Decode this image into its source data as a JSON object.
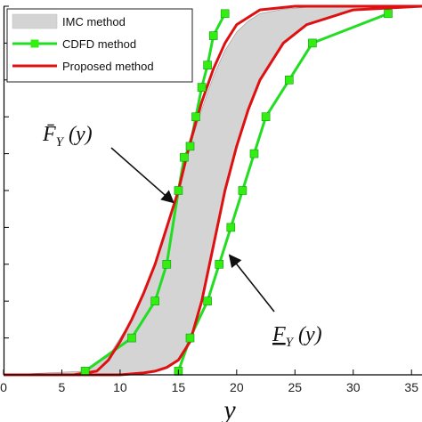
{
  "chart_data": {
    "type": "line",
    "xlabel": "y",
    "xlim": [
      0,
      35.9
    ],
    "ylim": [
      0,
      1.0
    ],
    "x_ticks": [
      "0",
      "5",
      "10",
      "15",
      "20",
      "25",
      "30",
      "35"
    ],
    "colors": {
      "imc_fill": "#d4d4d4",
      "cdfd": "#22dd22",
      "cdfd_marker": "#33ee11",
      "proposed": "#dd1111",
      "axis": "#000000"
    },
    "legend_position": "top-left",
    "legend": [
      {
        "name": "IMC method",
        "style": "patch"
      },
      {
        "name": "CDFD method",
        "style": "line-marker"
      },
      {
        "name": "Proposed method",
        "style": "line"
      }
    ],
    "series": [
      {
        "name": "IMC method",
        "kind": "band",
        "upper": {
          "x": [
            0,
            7,
            9,
            10,
            11,
            12,
            13,
            14,
            15,
            16,
            17,
            18,
            19,
            20,
            21,
            22,
            24,
            26,
            28,
            30,
            36
          ],
          "y": [
            0,
            0.01,
            0.05,
            0.1,
            0.15,
            0.22,
            0.3,
            0.4,
            0.5,
            0.62,
            0.72,
            0.81,
            0.88,
            0.93,
            0.96,
            0.98,
            0.992,
            0.997,
            1.0,
            1.0,
            1.0
          ]
        },
        "lower": {
          "x": [
            0,
            10,
            12,
            13,
            14,
            15,
            16,
            17,
            18,
            19,
            20,
            21,
            22,
            24,
            26,
            30,
            36
          ],
          "y": [
            0,
            0,
            0.005,
            0.01,
            0.02,
            0.04,
            0.09,
            0.2,
            0.35,
            0.5,
            0.62,
            0.72,
            0.8,
            0.9,
            0.95,
            0.99,
            1.0
          ]
        }
      },
      {
        "name": "CDFD method",
        "kind": "two-curves",
        "upper": {
          "x": [
            7,
            11,
            13,
            14,
            15,
            15.5,
            16,
            16.5,
            17,
            17.5,
            18,
            19
          ],
          "y": [
            0.01,
            0.1,
            0.2,
            0.3,
            0.5,
            0.59,
            0.62,
            0.7,
            0.78,
            0.84,
            0.92,
            0.98
          ]
        },
        "lower": {
          "x": [
            15,
            16,
            17.5,
            18.5,
            19.5,
            20.5,
            21.5,
            22.5,
            24.5,
            26.5,
            33
          ],
          "y": [
            0.01,
            0.1,
            0.2,
            0.3,
            0.4,
            0.5,
            0.6,
            0.7,
            0.8,
            0.9,
            0.98
          ]
        }
      },
      {
        "name": "Proposed method",
        "kind": "two-curves",
        "upper": {
          "x": [
            0,
            6,
            8,
            9,
            10,
            11,
            12,
            13,
            14,
            15,
            16,
            17,
            18,
            19,
            20,
            21,
            22,
            25,
            35.9
          ],
          "y": [
            0,
            0.0,
            0.01,
            0.04,
            0.09,
            0.15,
            0.22,
            0.3,
            0.4,
            0.5,
            0.63,
            0.74,
            0.83,
            0.9,
            0.95,
            0.97,
            0.99,
            1.0,
            1.0
          ]
        },
        "lower": {
          "x": [
            0,
            10,
            12,
            13,
            14,
            15,
            16,
            17,
            18,
            19,
            20,
            21,
            22,
            24,
            26,
            30,
            35.9
          ],
          "y": [
            0,
            0,
            0.005,
            0.01,
            0.02,
            0.04,
            0.09,
            0.2,
            0.35,
            0.5,
            0.62,
            0.72,
            0.8,
            0.9,
            0.95,
            0.99,
            1.0
          ]
        }
      }
    ],
    "annotations": [
      {
        "label": "F̄_Y(y)",
        "text_main": "F̄",
        "sub": "Y",
        "arg": "(y)",
        "target": [
          14.8,
          0.47
        ]
      },
      {
        "label": "F_Y(y)",
        "text_main": "F",
        "sub": "Y",
        "arg": "(y)",
        "target": [
          19,
          0.32
        ]
      }
    ]
  }
}
